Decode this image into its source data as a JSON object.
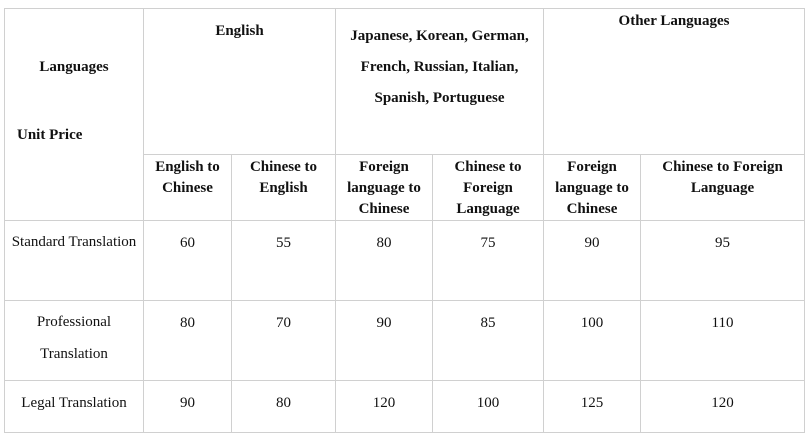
{
  "table": {
    "corner": {
      "languages": "Languages",
      "unit_price": "Unit Price"
    },
    "groups": [
      "English",
      "Japanese, Korean, German, French, Russian, Italian, Spanish, Portuguese",
      "Other Languages"
    ],
    "columns": [
      "English to Chinese",
      "Chinese to English",
      "Foreign language to Chinese",
      "Chinese to Foreign Language",
      "Foreign language to Chinese",
      "Chinese to Foreign Language"
    ],
    "rows": [
      {
        "label": "Standard Translation",
        "values": [
          "60",
          "55",
          "80",
          "75",
          "90",
          "95"
        ]
      },
      {
        "label": "Professional Translation",
        "values": [
          "80",
          "70",
          "90",
          "85",
          "100",
          "110"
        ]
      },
      {
        "label": "Legal Translation",
        "values": [
          "90",
          "80",
          "120",
          "100",
          "125",
          "120"
        ]
      }
    ]
  }
}
